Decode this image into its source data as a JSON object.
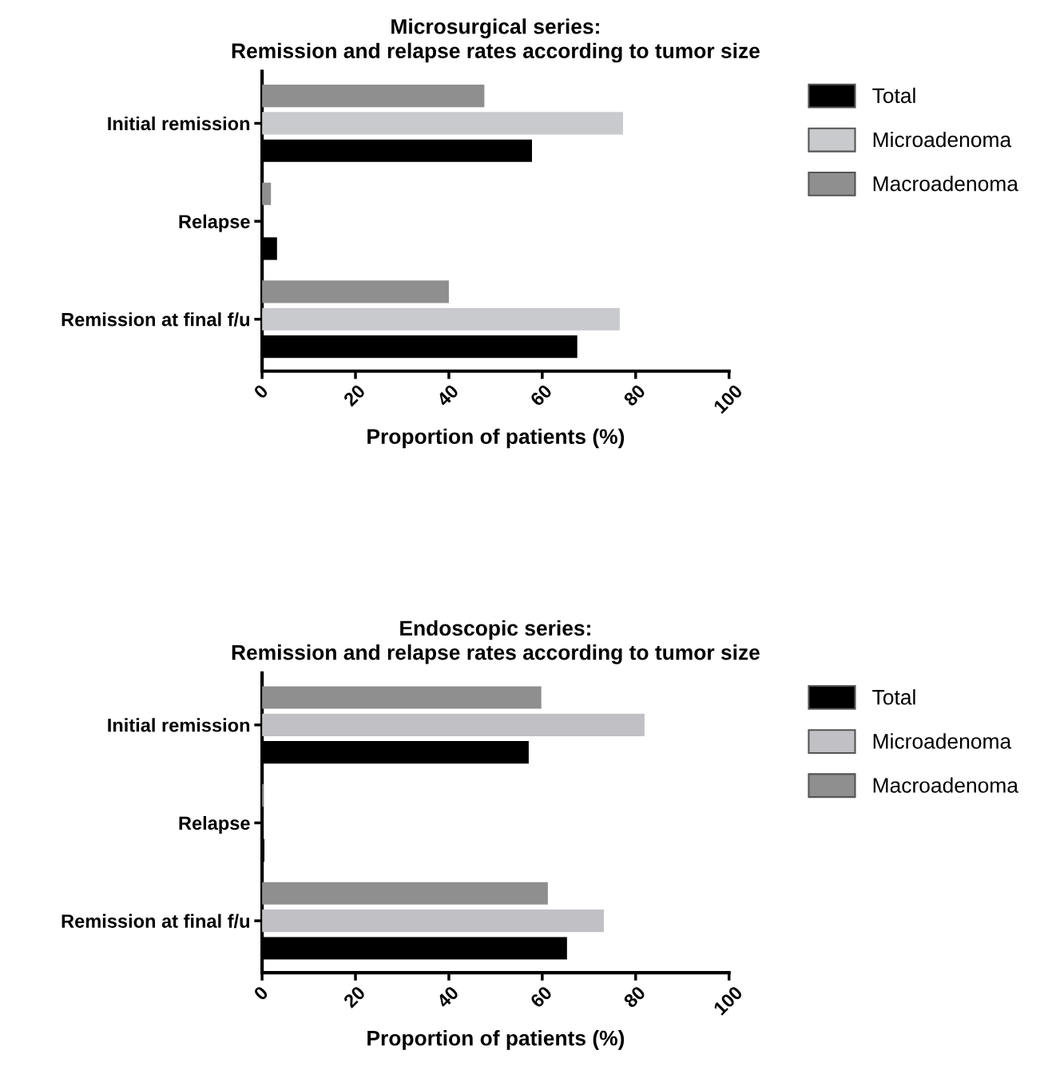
{
  "chart_data": [
    {
      "type": "bar",
      "orientation": "horizontal",
      "title": "Microsurgical series:\nRemission and relapse rates according to tumor size",
      "xlabel": "Proportion of patients (%)",
      "categories": [
        "Initial remission",
        "Relapse",
        "Remission at final f/u"
      ],
      "series": [
        {
          "name": "Total",
          "color": "#000000",
          "values": [
            57.8,
            3.2,
            67.5
          ]
        },
        {
          "name": "Microadenoma",
          "color": "#c9cacd",
          "values": [
            77.3,
            0,
            76.6
          ]
        },
        {
          "name": "Macroadenoma",
          "color": "#8f8f8f",
          "values": [
            47.6,
            1.9,
            40
          ]
        }
      ],
      "xlim": [
        0,
        100
      ],
      "xticks": [
        0,
        20,
        40,
        60,
        80,
        100
      ],
      "grid": false,
      "legend": "top right"
    },
    {
      "type": "bar",
      "orientation": "horizontal",
      "title": "Endoscopic series:\nRemission and relapse rates according to tumor size",
      "xlabel": "Proportion of patients (%)",
      "categories": [
        "Initial remission",
        "Relapse",
        "Remission at final f/u"
      ],
      "series": [
        {
          "name": "Total",
          "color": "#000000",
          "values": [
            57.1,
            0.5,
            65.3
          ]
        },
        {
          "name": "Microadenoma",
          "color": "#c1c1c5",
          "values": [
            81.9,
            0,
            73.2
          ]
        },
        {
          "name": "Macroadenoma",
          "color": "#8f8f8f",
          "values": [
            59.8,
            0.3,
            61.2
          ]
        }
      ],
      "xlim": [
        0,
        100
      ],
      "xticks": [
        0,
        20,
        40,
        60,
        80,
        100
      ],
      "grid": false,
      "legend": "top right"
    }
  ]
}
